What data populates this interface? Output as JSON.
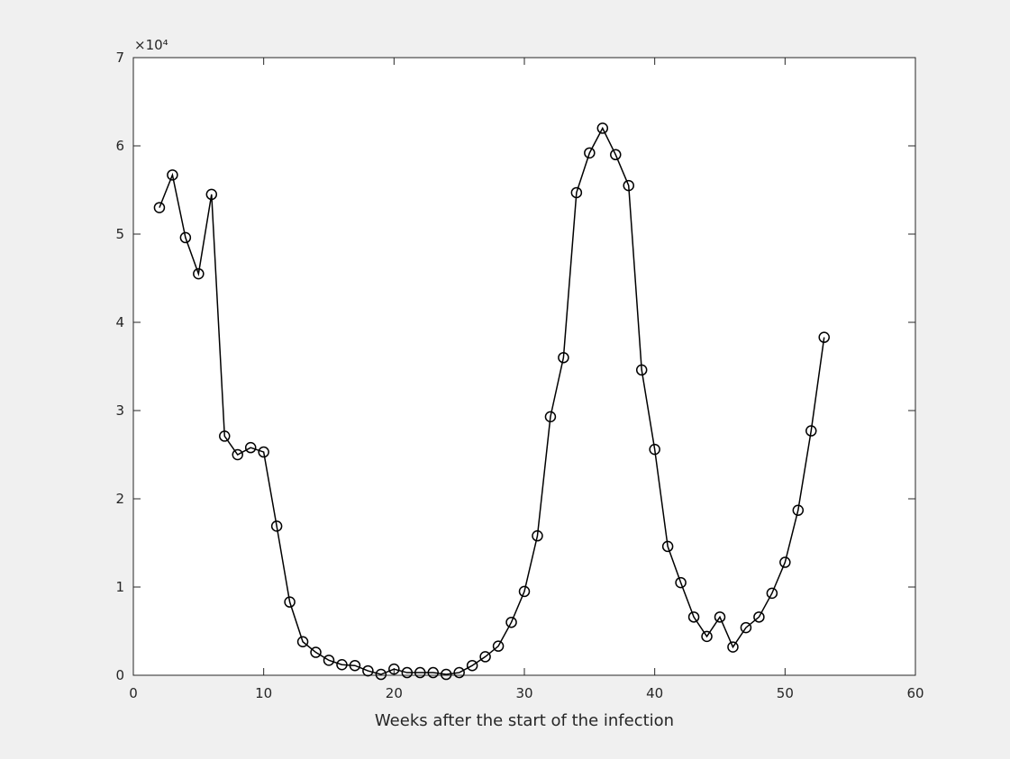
{
  "chart_data": {
    "type": "line",
    "xlabel": "Weeks after the start of the infection",
    "ylabel": "",
    "xlim": [
      0,
      60
    ],
    "ylim": [
      0,
      70000
    ],
    "xticks": [
      0,
      10,
      20,
      30,
      40,
      50,
      60
    ],
    "yticks": [
      0,
      1,
      2,
      3,
      4,
      5,
      6,
      7
    ],
    "y_exponent_label": "×10⁴",
    "y_scale": 10000,
    "grid": false,
    "marker": "circle",
    "line_color": "#000000",
    "series": [
      {
        "x": [
          2,
          3,
          4,
          5,
          6,
          7,
          8,
          9,
          10,
          11,
          12,
          13,
          14,
          15,
          16,
          17,
          18,
          19,
          20,
          21,
          22,
          23,
          24,
          25,
          26,
          27,
          28,
          29,
          30,
          31,
          32,
          33,
          34,
          35,
          36,
          37,
          38,
          39,
          40,
          41,
          42,
          43,
          44,
          45,
          46,
          47,
          48,
          49,
          50,
          51,
          52,
          53
        ],
        "values": [
          53000,
          56700,
          49600,
          45500,
          54500,
          27100,
          25000,
          25800,
          25300,
          16900,
          8300,
          3800,
          2600,
          1700,
          1200,
          1100,
          500,
          100,
          700,
          300,
          300,
          300,
          100,
          300,
          1100,
          2100,
          3300,
          6000,
          9500,
          15800,
          29300,
          36000,
          54700,
          59200,
          62000,
          59000,
          55500,
          34600,
          25600,
          14600,
          10500,
          6600,
          4400,
          6600,
          3200,
          5400,
          6600,
          9300,
          12800,
          18700,
          27700,
          38300
        ]
      }
    ]
  }
}
